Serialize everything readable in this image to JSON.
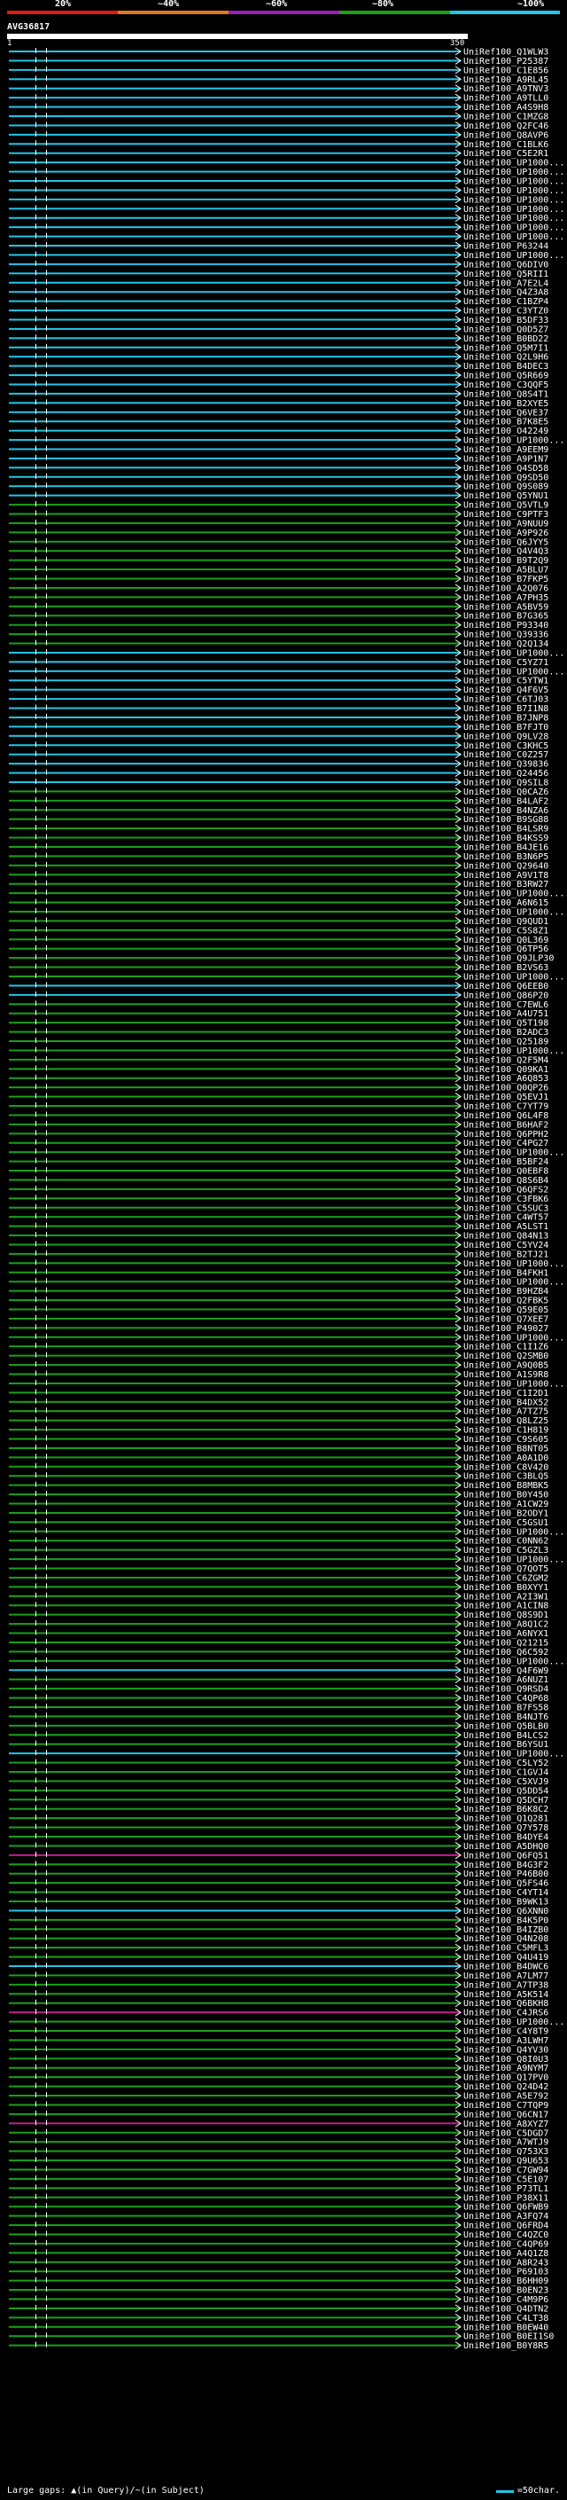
{
  "legend": {
    "labels": [
      "20%",
      "~40%",
      "~60%",
      "~80%",
      "~100%"
    ],
    "colors": [
      "#e01919",
      "#e07a19",
      "#9b1fb3",
      "#1aa01a",
      "#22c6e6"
    ]
  },
  "query": {
    "title": "AVG36817",
    "start": "1",
    "end": "350"
  },
  "colors": {
    "cyan": "#22c6e6",
    "green": "#1aa01a",
    "magenta": "#c0208a",
    "gap": "#ffffff"
  },
  "footer": {
    "left": "Large gaps: ▲(in Query)/~(in Subject)",
    "right": "=50char."
  },
  "hits": [
    {
      "label": "UniRef100_Q1WLW3",
      "c": "cyan"
    },
    {
      "label": "UniRef100_P25387",
      "c": "cyan"
    },
    {
      "label": "UniRef100_C1E856",
      "c": "cyan"
    },
    {
      "label": "UniRef100_A9RL45",
      "c": "cyan"
    },
    {
      "label": "UniRef100_A9TNV3",
      "c": "cyan"
    },
    {
      "label": "UniRef100_A9TLL0",
      "c": "cyan"
    },
    {
      "label": "UniRef100_A4S9H8",
      "c": "cyan"
    },
    {
      "label": "UniRef100_C1MZG8",
      "c": "cyan"
    },
    {
      "label": "UniRef100_Q2FC46",
      "c": "cyan"
    },
    {
      "label": "UniRef100_Q8AVP6",
      "c": "cyan"
    },
    {
      "label": "UniRef100_C1BLK6",
      "c": "cyan"
    },
    {
      "label": "UniRef100_C5E2R1",
      "c": "cyan"
    },
    {
      "label": "UniRef100_UP1000...",
      "c": "cyan"
    },
    {
      "label": "UniRef100_UP1000...",
      "c": "cyan"
    },
    {
      "label": "UniRef100_UP1000...",
      "c": "cyan"
    },
    {
      "label": "UniRef100_UP1000...",
      "c": "cyan"
    },
    {
      "label": "UniRef100_UP1000...",
      "c": "cyan"
    },
    {
      "label": "UniRef100_UP1000...",
      "c": "cyan"
    },
    {
      "label": "UniRef100_UP1000...",
      "c": "cyan"
    },
    {
      "label": "UniRef100_UP1000...",
      "c": "cyan"
    },
    {
      "label": "UniRef100_UP1000...",
      "c": "cyan"
    },
    {
      "label": "UniRef100_P63244",
      "c": "cyan"
    },
    {
      "label": "UniRef100_UP1000...",
      "c": "cyan"
    },
    {
      "label": "UniRef100_Q6DIV0",
      "c": "cyan"
    },
    {
      "label": "UniRef100_Q5RII1",
      "c": "cyan"
    },
    {
      "label": "UniRef100_A7E2L4",
      "c": "cyan"
    },
    {
      "label": "UniRef100_Q4Z3A8",
      "c": "cyan"
    },
    {
      "label": "UniRef100_C1BZP4",
      "c": "cyan"
    },
    {
      "label": "UniRef100_C3YTZ0",
      "c": "cyan"
    },
    {
      "label": "UniRef100_B5DF33",
      "c": "cyan"
    },
    {
      "label": "UniRef100_Q0D5Z7",
      "c": "cyan"
    },
    {
      "label": "UniRef100_B0BD22",
      "c": "cyan"
    },
    {
      "label": "UniRef100_Q5M7I1",
      "c": "cyan"
    },
    {
      "label": "UniRef100_Q2L9H6",
      "c": "cyan"
    },
    {
      "label": "UniRef100_B4DEC3",
      "c": "cyan"
    },
    {
      "label": "UniRef100_Q5R669",
      "c": "cyan"
    },
    {
      "label": "UniRef100_C3QQF5",
      "c": "cyan"
    },
    {
      "label": "UniRef100_Q8S4T1",
      "c": "cyan"
    },
    {
      "label": "UniRef100_B2XYE5",
      "c": "cyan"
    },
    {
      "label": "UniRef100_Q6VE37",
      "c": "cyan"
    },
    {
      "label": "UniRef100_B7K8E5",
      "c": "cyan"
    },
    {
      "label": "UniRef100_O42249",
      "c": "cyan"
    },
    {
      "label": "UniRef100_UP1000...",
      "c": "cyan"
    },
    {
      "label": "UniRef100_A9EEM9",
      "c": "cyan"
    },
    {
      "label": "UniRef100_A9P1N7",
      "c": "cyan"
    },
    {
      "label": "UniRef100_Q4SD58",
      "c": "cyan"
    },
    {
      "label": "UniRef100_Q9SD50",
      "c": "cyan"
    },
    {
      "label": "UniRef100_Q9S089",
      "c": "cyan"
    },
    {
      "label": "UniRef100_Q5YNU1",
      "c": "cyan"
    },
    {
      "label": "UniRef100_Q5VTL9",
      "c": "green"
    },
    {
      "label": "UniRef100_C9PTF3",
      "c": "green"
    },
    {
      "label": "UniRef100_A9NUU9",
      "c": "green"
    },
    {
      "label": "UniRef100_A9P926",
      "c": "green"
    },
    {
      "label": "UniRef100_Q6JYY5",
      "c": "green"
    },
    {
      "label": "UniRef100_Q4V4Q3",
      "c": "green"
    },
    {
      "label": "UniRef100_B9T2Q9",
      "c": "green"
    },
    {
      "label": "UniRef100_A5BLU7",
      "c": "green"
    },
    {
      "label": "UniRef100_B7FKP5",
      "c": "green"
    },
    {
      "label": "UniRef100_A2Q076",
      "c": "green"
    },
    {
      "label": "UniRef100_A7PH35",
      "c": "green"
    },
    {
      "label": "UniRef100_A5BV59",
      "c": "green"
    },
    {
      "label": "UniRef100_B7G365",
      "c": "green"
    },
    {
      "label": "UniRef100_P93340",
      "c": "green"
    },
    {
      "label": "UniRef100_Q39336",
      "c": "green"
    },
    {
      "label": "UniRef100_Q2Q134",
      "c": "green"
    },
    {
      "label": "UniRef100_UP1000...",
      "c": "cyan"
    },
    {
      "label": "UniRef100_C5YZ71",
      "c": "cyan"
    },
    {
      "label": "UniRef100_UP1000...",
      "c": "cyan"
    },
    {
      "label": "UniRef100_C5YTW1",
      "c": "cyan"
    },
    {
      "label": "UniRef100_Q4F6V5",
      "c": "cyan"
    },
    {
      "label": "UniRef100_C6TJ03",
      "c": "cyan"
    },
    {
      "label": "UniRef100_B7I1N8",
      "c": "cyan"
    },
    {
      "label": "UniRef100_B7JNP8",
      "c": "cyan"
    },
    {
      "label": "UniRef100_B7FJT0",
      "c": "cyan"
    },
    {
      "label": "UniRef100_Q9LV28",
      "c": "cyan"
    },
    {
      "label": "UniRef100_C3KHC5",
      "c": "cyan"
    },
    {
      "label": "UniRef100_C0Z257",
      "c": "cyan"
    },
    {
      "label": "UniRef100_Q39836",
      "c": "cyan"
    },
    {
      "label": "UniRef100_Q24456",
      "c": "cyan"
    },
    {
      "label": "UniRef100_Q9SIL8",
      "c": "cyan"
    },
    {
      "label": "UniRef100_Q0CAZ6",
      "c": "green"
    },
    {
      "label": "UniRef100_B4LAF2",
      "c": "green"
    },
    {
      "label": "UniRef100_B4NZA6",
      "c": "green"
    },
    {
      "label": "UniRef100_B9SG88",
      "c": "green"
    },
    {
      "label": "UniRef100_B4LSR9",
      "c": "green"
    },
    {
      "label": "UniRef100_B4KSS9",
      "c": "green"
    },
    {
      "label": "UniRef100_B4JE16",
      "c": "green"
    },
    {
      "label": "UniRef100_B3N6P5",
      "c": "green"
    },
    {
      "label": "UniRef100_Q29640",
      "c": "green"
    },
    {
      "label": "UniRef100_A9V1T8",
      "c": "green"
    },
    {
      "label": "UniRef100_B3RW27",
      "c": "green"
    },
    {
      "label": "UniRef100_UP1000...",
      "c": "green"
    },
    {
      "label": "UniRef100_A6N615",
      "c": "green"
    },
    {
      "label": "UniRef100_UP1000...",
      "c": "green"
    },
    {
      "label": "UniRef100_Q9QUD1",
      "c": "green"
    },
    {
      "label": "UniRef100_C5S8Z1",
      "c": "green"
    },
    {
      "label": "UniRef100_Q0L369",
      "c": "green"
    },
    {
      "label": "UniRef100_Q6TP56",
      "c": "green"
    },
    {
      "label": "UniRef100_Q9JLP30",
      "c": "green"
    },
    {
      "label": "UniRef100_B2VS63",
      "c": "green"
    },
    {
      "label": "UniRef100_UP1000...",
      "c": "green"
    },
    {
      "label": "UniRef100_Q6EEB0",
      "c": "cyan"
    },
    {
      "label": "UniRef100_Q86P20",
      "c": "cyan"
    },
    {
      "label": "UniRef100_C7EWL6",
      "c": "green"
    },
    {
      "label": "UniRef100_A4U751",
      "c": "green"
    },
    {
      "label": "UniRef100_Q5T198",
      "c": "green"
    },
    {
      "label": "UniRef100_B2ADC3",
      "c": "green"
    },
    {
      "label": "UniRef100_Q25189",
      "c": "green"
    },
    {
      "label": "UniRef100_UP1000...",
      "c": "green"
    },
    {
      "label": "UniRef100_Q2F5M4",
      "c": "green"
    },
    {
      "label": "UniRef100_Q09KA1",
      "c": "green"
    },
    {
      "label": "UniRef100_A6Q853",
      "c": "green"
    },
    {
      "label": "UniRef100_Q0QP26",
      "c": "green"
    },
    {
      "label": "UniRef100_Q5EVJ1",
      "c": "green"
    },
    {
      "label": "UniRef100_C7YT79",
      "c": "green"
    },
    {
      "label": "UniRef100_Q6L4F8",
      "c": "green"
    },
    {
      "label": "UniRef100_B6HAF2",
      "c": "green"
    },
    {
      "label": "UniRef100_Q6PPH2",
      "c": "green"
    },
    {
      "label": "UniRef100_C4PG27",
      "c": "green"
    },
    {
      "label": "UniRef100_UP1000...",
      "c": "green"
    },
    {
      "label": "UniRef100_B5BF24",
      "c": "green"
    },
    {
      "label": "UniRef100_Q0EBF8",
      "c": "green"
    },
    {
      "label": "UniRef100_Q8S6B4",
      "c": "green"
    },
    {
      "label": "UniRef100_Q6QFS2",
      "c": "green"
    },
    {
      "label": "UniRef100_C3FBK6",
      "c": "green"
    },
    {
      "label": "UniRef100_C5SUC3",
      "c": "green"
    },
    {
      "label": "UniRef100_C4WT57",
      "c": "green"
    },
    {
      "label": "UniRef100_A5LST1",
      "c": "green"
    },
    {
      "label": "UniRef100_Q84N13",
      "c": "green"
    },
    {
      "label": "UniRef100_C5YV24",
      "c": "green"
    },
    {
      "label": "UniRef100_B2TJ21",
      "c": "green"
    },
    {
      "label": "UniRef100_UP1000...",
      "c": "green"
    },
    {
      "label": "UniRef100_B4FKH1",
      "c": "green"
    },
    {
      "label": "UniRef100_UP1000...",
      "c": "green"
    },
    {
      "label": "UniRef100_B9HZB4",
      "c": "green"
    },
    {
      "label": "UniRef100_Q2FBK5",
      "c": "green"
    },
    {
      "label": "UniRef100_Q59E05",
      "c": "green"
    },
    {
      "label": "UniRef100_Q7XEE7",
      "c": "green"
    },
    {
      "label": "UniRef100_P49027",
      "c": "green"
    },
    {
      "label": "UniRef100_UP1000...",
      "c": "green"
    },
    {
      "label": "UniRef100_C1I1Z6",
      "c": "green"
    },
    {
      "label": "UniRef100_Q2SMB0",
      "c": "green"
    },
    {
      "label": "UniRef100_A9Q0B5",
      "c": "green"
    },
    {
      "label": "UniRef100_A1S9R8",
      "c": "green"
    },
    {
      "label": "UniRef100_UP1000...",
      "c": "green"
    },
    {
      "label": "UniRef100_C1I2D1",
      "c": "green"
    },
    {
      "label": "UniRef100_B4DX52",
      "c": "green"
    },
    {
      "label": "UniRef100_A7TZ75",
      "c": "green"
    },
    {
      "label": "UniRef100_Q8LZ25",
      "c": "green"
    },
    {
      "label": "UniRef100_C1H819",
      "c": "green"
    },
    {
      "label": "UniRef100_C9S605",
      "c": "green"
    },
    {
      "label": "UniRef100_B8NT05",
      "c": "green"
    },
    {
      "label": "UniRef100_A0A1D0",
      "c": "green"
    },
    {
      "label": "UniRef100_C8V420",
      "c": "green"
    },
    {
      "label": "UniRef100_C3BLQ5",
      "c": "green"
    },
    {
      "label": "UniRef100_B8MBK5",
      "c": "green"
    },
    {
      "label": "UniRef100_B0Y450",
      "c": "green"
    },
    {
      "label": "UniRef100_A1CW29",
      "c": "green"
    },
    {
      "label": "UniRef100_B2ODY1",
      "c": "green"
    },
    {
      "label": "UniRef100_C5GSU1",
      "c": "green"
    },
    {
      "label": "UniRef100_UP1000...",
      "c": "green"
    },
    {
      "label": "UniRef100_C0NN62",
      "c": "green"
    },
    {
      "label": "UniRef100_C5GZL3",
      "c": "green"
    },
    {
      "label": "UniRef100_UP1000...",
      "c": "green"
    },
    {
      "label": "UniRef100_Q7QOT5",
      "c": "green"
    },
    {
      "label": "UniRef100_C6ZGM2",
      "c": "green"
    },
    {
      "label": "UniRef100_B0XYY1",
      "c": "green"
    },
    {
      "label": "UniRef100_A2I3W1",
      "c": "green"
    },
    {
      "label": "UniRef100_A1CIN8",
      "c": "green"
    },
    {
      "label": "UniRef100_Q8S9D1",
      "c": "green"
    },
    {
      "label": "UniRef100_A8Q1C2",
      "c": "green"
    },
    {
      "label": "UniRef100_A6NYX1",
      "c": "green"
    },
    {
      "label": "UniRef100_Q21215",
      "c": "green"
    },
    {
      "label": "UniRef100_Q6C592",
      "c": "green"
    },
    {
      "label": "UniRef100_UP1000...",
      "c": "green"
    },
    {
      "label": "UniRef100_Q4F6W9",
      "c": "cyan"
    },
    {
      "label": "UniRef100_A6NUZ1",
      "c": "green"
    },
    {
      "label": "UniRef100_Q9RSD4",
      "c": "green"
    },
    {
      "label": "UniRef100_C4QP68",
      "c": "green"
    },
    {
      "label": "UniRef100_B7FS58",
      "c": "green"
    },
    {
      "label": "UniRef100_B4NJT6",
      "c": "green"
    },
    {
      "label": "UniRef100_Q5BLB0",
      "c": "green"
    },
    {
      "label": "UniRef100_B4LCS2",
      "c": "green"
    },
    {
      "label": "UniRef100_B6YSU1",
      "c": "green"
    },
    {
      "label": "UniRef100_UP1000...",
      "c": "cyan"
    },
    {
      "label": "UniRef100_C5LY52",
      "c": "green"
    },
    {
      "label": "UniRef100_C1GVJ4",
      "c": "green"
    },
    {
      "label": "UniRef100_C5XVJ9",
      "c": "green"
    },
    {
      "label": "UniRef100_Q5DD54",
      "c": "green"
    },
    {
      "label": "UniRef100_Q5DCH7",
      "c": "green"
    },
    {
      "label": "UniRef100_B6K8C2",
      "c": "green"
    },
    {
      "label": "UniRef100_Q1Q281",
      "c": "green"
    },
    {
      "label": "UniRef100_Q7Y578",
      "c": "green"
    },
    {
      "label": "UniRef100_B4DYE4",
      "c": "green"
    },
    {
      "label": "UniRef100_A5DHQ0",
      "c": "green"
    },
    {
      "label": "UniRef100_Q6FQ51",
      "c": "magenta"
    },
    {
      "label": "UniRef100_B4G3F2",
      "c": "green"
    },
    {
      "label": "UniRef100_P46B00",
      "c": "green"
    },
    {
      "label": "UniRef100_Q5FS46",
      "c": "green"
    },
    {
      "label": "UniRef100_C4YT14",
      "c": "green"
    },
    {
      "label": "UniRef100_B9WK13",
      "c": "green"
    },
    {
      "label": "UniRef100_Q6XNN0",
      "c": "cyan"
    },
    {
      "label": "UniRef100_B4K5P0",
      "c": "green"
    },
    {
      "label": "UniRef100_B4IZB0",
      "c": "green"
    },
    {
      "label": "UniRef100_Q4N208",
      "c": "green"
    },
    {
      "label": "UniRef100_C5MFL3",
      "c": "green"
    },
    {
      "label": "UniRef100_Q4U419",
      "c": "green"
    },
    {
      "label": "UniRef100_B4DWC6",
      "c": "cyan"
    },
    {
      "label": "UniRef100_A7LM77",
      "c": "green"
    },
    {
      "label": "UniRef100_A7TP38",
      "c": "green"
    },
    {
      "label": "UniRef100_A5K514",
      "c": "green"
    },
    {
      "label": "UniRef100_Q6BKH8",
      "c": "green"
    },
    {
      "label": "UniRef100_C4JRS6",
      "c": "magenta"
    },
    {
      "label": "UniRef100_UP1000...",
      "c": "green"
    },
    {
      "label": "UniRef100_C4Y8T9",
      "c": "green"
    },
    {
      "label": "UniRef100_A3LWH7",
      "c": "green"
    },
    {
      "label": "UniRef100_Q4YV30",
      "c": "green"
    },
    {
      "label": "UniRef100_Q8I0U3",
      "c": "green"
    },
    {
      "label": "UniRef100_A9NYM7",
      "c": "green"
    },
    {
      "label": "UniRef100_Q17PV0",
      "c": "green"
    },
    {
      "label": "UniRef100_Q24D42",
      "c": "green"
    },
    {
      "label": "UniRef100_A5E792",
      "c": "green"
    },
    {
      "label": "UniRef100_C7TQP9",
      "c": "green"
    },
    {
      "label": "UniRef100_Q6CN17",
      "c": "green"
    },
    {
      "label": "UniRef100_A8XYZ7",
      "c": "magenta"
    },
    {
      "label": "UniRef100_C5DGD7",
      "c": "green"
    },
    {
      "label": "UniRef100_A7WTJ9",
      "c": "green"
    },
    {
      "label": "UniRef100_Q753X3",
      "c": "green"
    },
    {
      "label": "UniRef100_Q9U653",
      "c": "green"
    },
    {
      "label": "UniRef100_C7GW94",
      "c": "green"
    },
    {
      "label": "UniRef100_C5E107",
      "c": "green"
    },
    {
      "label": "UniRef100_P73TL1",
      "c": "green"
    },
    {
      "label": "UniRef100_P38X11",
      "c": "green"
    },
    {
      "label": "UniRef100_Q6FWB9",
      "c": "green"
    },
    {
      "label": "UniRef100_A3FQ74",
      "c": "green"
    },
    {
      "label": "UniRef100_Q6FRD4",
      "c": "green"
    },
    {
      "label": "UniRef100_C4QZC0",
      "c": "green"
    },
    {
      "label": "UniRef100_C4QP69",
      "c": "green"
    },
    {
      "label": "UniRef100_A4Q1Z8",
      "c": "green"
    },
    {
      "label": "UniRef100_A8R243",
      "c": "green"
    },
    {
      "label": "UniRef100_P69103",
      "c": "green"
    },
    {
      "label": "UniRef100_B6HH09",
      "c": "green"
    },
    {
      "label": "UniRef100_B0EN23",
      "c": "green"
    },
    {
      "label": "UniRef100_C4M9P6",
      "c": "green"
    },
    {
      "label": "UniRef100_Q4DTN2",
      "c": "green"
    },
    {
      "label": "UniRef100_C4LT38",
      "c": "green"
    },
    {
      "label": "UniRef100_B0EW40",
      "c": "green"
    },
    {
      "label": "UniRef100_B0EI1S0",
      "c": "green"
    },
    {
      "label": "UniRef100_B0Y8R5",
      "c": "green"
    }
  ]
}
